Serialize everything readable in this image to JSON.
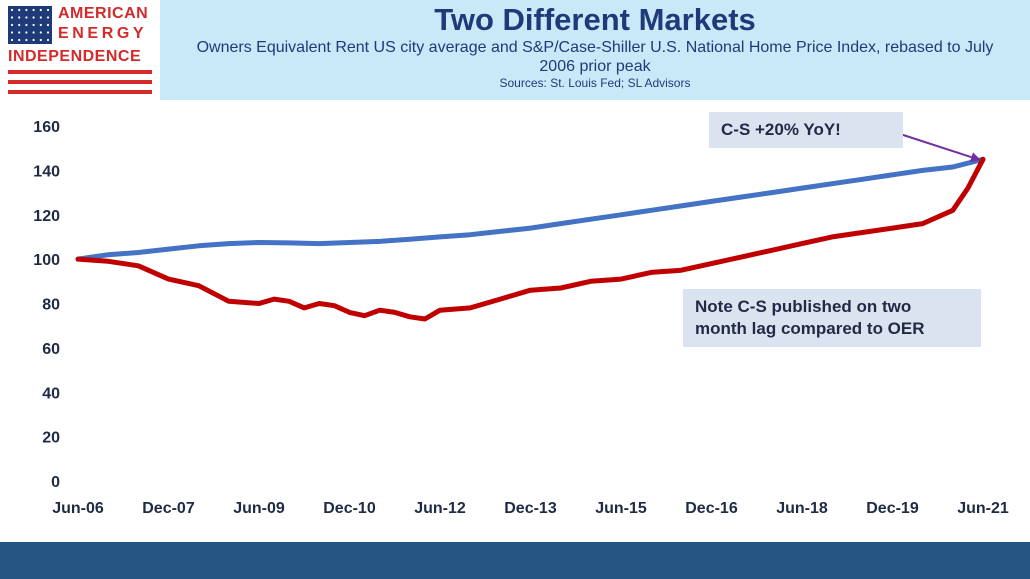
{
  "brand": {
    "line1": "AMERICAN",
    "line2": "ENERGY",
    "line3": "INDEPENDENCE",
    "flag_icon": "us-flag-icon"
  },
  "header": {
    "title": "Two Different Markets",
    "subtitle": "Owners Equivalent Rent US city average and S&P/Case-Shiller U.S. National Home Price Index, rebased to July 2006 prior peak",
    "sources": "Sources: St. Louis Fed; SL Advisors"
  },
  "colors": {
    "oer_line": "#4472c4",
    "cs_line": "#c00000",
    "arrow": "#7030a0",
    "header_bg": "#c9e9f9",
    "footer_bg": "#245582",
    "brand_red": "#d42a2a",
    "brand_navy": "#1f3a78"
  },
  "annotations": {
    "yoy": "C-S +20% YoY!",
    "lag_line1": "Note C-S published on two",
    "lag_line2": "month lag compared to OER"
  },
  "chart_data": {
    "type": "line",
    "title": "Two Different Markets",
    "xlabel": "",
    "ylabel": "",
    "x_start": "Jun-06",
    "x_end": "Jun-21",
    "xticks": [
      "Jun-06",
      "Dec-07",
      "Jun-09",
      "Dec-10",
      "Jun-12",
      "Dec-13",
      "Jun-15",
      "Dec-16",
      "Jun-18",
      "Dec-19",
      "Jun-21"
    ],
    "yticks": [
      0,
      20,
      40,
      60,
      80,
      100,
      120,
      140,
      160
    ],
    "ylim": [
      0,
      160
    ],
    "grid": false,
    "legend": "none",
    "series": [
      {
        "color": "#4472c4",
        "points": [
          [
            "Jun-06",
            100
          ],
          [
            "Dec-06",
            102
          ],
          [
            "Jun-07",
            103
          ],
          [
            "Dec-07",
            104.5
          ],
          [
            "Jun-08",
            106
          ],
          [
            "Dec-08",
            107
          ],
          [
            "Jun-09",
            107.5
          ],
          [
            "Dec-09",
            107.3
          ],
          [
            "Jun-10",
            107
          ],
          [
            "Dec-10",
            107.5
          ],
          [
            "Jun-11",
            108
          ],
          [
            "Dec-11",
            109
          ],
          [
            "Jun-12",
            110
          ],
          [
            "Dec-12",
            111
          ],
          [
            "Jun-13",
            112.5
          ],
          [
            "Dec-13",
            114
          ],
          [
            "Jun-14",
            116
          ],
          [
            "Dec-14",
            118
          ],
          [
            "Jun-15",
            120
          ],
          [
            "Dec-15",
            122
          ],
          [
            "Jun-16",
            124
          ],
          [
            "Dec-16",
            126
          ],
          [
            "Jun-17",
            128
          ],
          [
            "Dec-17",
            130
          ],
          [
            "Jun-18",
            132
          ],
          [
            "Dec-18",
            134
          ],
          [
            "Jun-19",
            136
          ],
          [
            "Dec-19",
            138
          ],
          [
            "Jun-20",
            140
          ],
          [
            "Dec-20",
            141.5
          ],
          [
            "Jun-21",
            145
          ]
        ]
      },
      {
        "color": "#c00000",
        "points": [
          [
            "Jun-06",
            100
          ],
          [
            "Dec-06",
            99
          ],
          [
            "Jun-07",
            97
          ],
          [
            "Dec-07",
            91
          ],
          [
            "Jun-08",
            88
          ],
          [
            "Dec-08",
            81
          ],
          [
            "Jun-09",
            80
          ],
          [
            "Sep-09",
            82
          ],
          [
            "Dec-09",
            81
          ],
          [
            "Mar-10",
            78
          ],
          [
            "Jun-10",
            80
          ],
          [
            "Sep-10",
            79
          ],
          [
            "Dec-10",
            76
          ],
          [
            "Mar-11",
            74.5
          ],
          [
            "Jun-11",
            77
          ],
          [
            "Sep-11",
            76
          ],
          [
            "Dec-11",
            74
          ],
          [
            "Mar-12",
            73
          ],
          [
            "Jun-12",
            77
          ],
          [
            "Dec-12",
            78
          ],
          [
            "Jun-13",
            82
          ],
          [
            "Dec-13",
            86
          ],
          [
            "Jun-14",
            87
          ],
          [
            "Dec-14",
            90
          ],
          [
            "Jun-15",
            91
          ],
          [
            "Dec-15",
            94
          ],
          [
            "Jun-16",
            95
          ],
          [
            "Dec-16",
            98
          ],
          [
            "Jun-17",
            101
          ],
          [
            "Dec-17",
            104
          ],
          [
            "Jun-18",
            107
          ],
          [
            "Dec-18",
            110
          ],
          [
            "Jun-19",
            112
          ],
          [
            "Dec-19",
            114
          ],
          [
            "Jun-20",
            116
          ],
          [
            "Dec-20",
            122
          ],
          [
            "Mar-21",
            132
          ],
          [
            "Jun-21",
            145
          ]
        ]
      }
    ]
  }
}
